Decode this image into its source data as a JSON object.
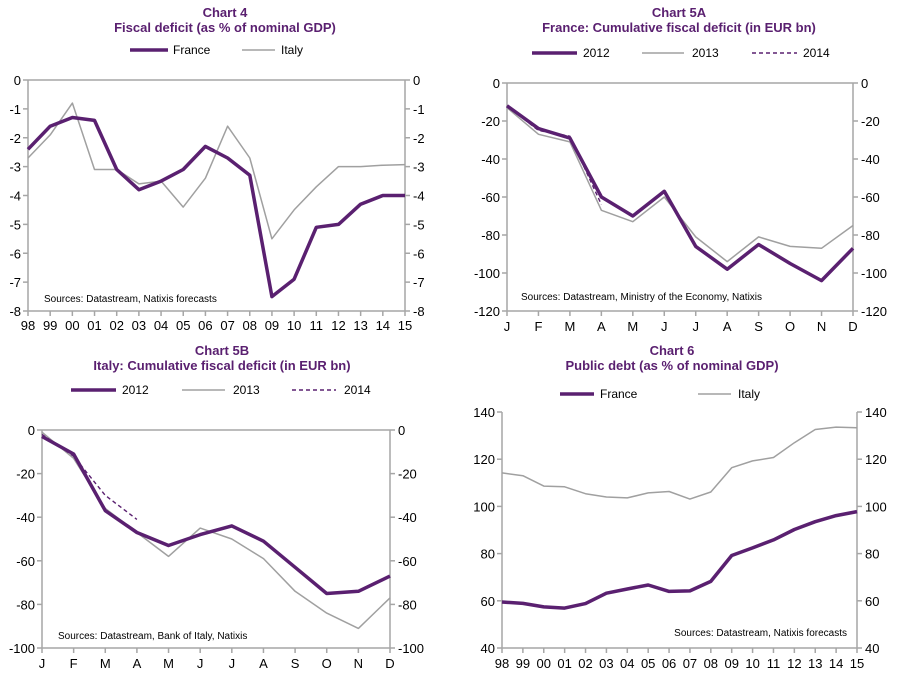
{
  "colors": {
    "primary": "#5a2070",
    "secondary": "#a0a0a0",
    "axis": "#a6a6a6",
    "title": "#5a2070"
  },
  "chart_data": [
    {
      "id": "chart4",
      "type": "line",
      "title": "Chart 4",
      "subtitle": "Fiscal deficit (as % of nominal GDP)",
      "xlabel": "",
      "ylabel": "",
      "categories": [
        "98",
        "99",
        "00",
        "01",
        "02",
        "03",
        "04",
        "05",
        "06",
        "07",
        "08",
        "09",
        "10",
        "11",
        "12",
        "13",
        "14",
        "15"
      ],
      "ylim": [
        -8,
        0
      ],
      "yticks": [
        0,
        -1,
        -2,
        -3,
        -4,
        -5,
        -6,
        -7,
        -8
      ],
      "grid": false,
      "legend_position": "top-center",
      "source": "Sources: Datastream, Natixis forecasts",
      "series": [
        {
          "name": "France",
          "style": "thick",
          "values": [
            -2.4,
            -1.6,
            -1.3,
            -1.4,
            -3.1,
            -3.8,
            -3.5,
            -3.1,
            -2.3,
            -2.7,
            -3.3,
            -7.5,
            -6.9,
            -5.1,
            -5.0,
            -4.3,
            -4.0,
            -4.0
          ]
        },
        {
          "name": "Italy",
          "style": "thin",
          "values": [
            -2.7,
            -1.9,
            -0.8,
            -3.1,
            -3.1,
            -3.6,
            -3.5,
            -4.4,
            -3.4,
            -1.6,
            -2.7,
            -5.5,
            -4.5,
            -3.7,
            -3.0,
            -3.0,
            -2.95,
            -2.93
          ]
        }
      ]
    },
    {
      "id": "chart5a",
      "type": "line",
      "title": "Chart 5A",
      "subtitle": "France: Cumulative fiscal deficit (in EUR bn)",
      "xlabel": "",
      "ylabel": "",
      "categories": [
        "J",
        "F",
        "M",
        "A",
        "M",
        "J",
        "J",
        "A",
        "S",
        "O",
        "N",
        "D"
      ],
      "ylim": [
        -120,
        0
      ],
      "yticks": [
        0,
        -20,
        -40,
        -60,
        -80,
        -100,
        -120
      ],
      "grid": false,
      "legend_position": "top-center",
      "source": "Sources: Datastream, Ministry of the Economy, Natixis",
      "series": [
        {
          "name": "2012",
          "style": "thick",
          "values": [
            -12,
            -24,
            -29,
            -60,
            -70,
            -57,
            -86,
            -98,
            -85,
            -95,
            -104,
            -87
          ]
        },
        {
          "name": "2013",
          "style": "thin",
          "values": [
            -13,
            -27,
            -31,
            -67,
            -73,
            -60,
            -81,
            -94,
            -81,
            -86,
            -87,
            -75
          ]
        },
        {
          "name": "2014",
          "style": "dashed",
          "values": [
            -12,
            -25,
            -28,
            -64,
            null,
            null,
            null,
            null,
            null,
            null,
            null,
            null
          ]
        }
      ]
    },
    {
      "id": "chart5b",
      "type": "line",
      "title": "Chart 5B",
      "subtitle": "Italy: Cumulative fiscal deficit (in EUR bn)",
      "xlabel": "",
      "ylabel": "",
      "categories": [
        "J",
        "F",
        "M",
        "A",
        "M",
        "J",
        "J",
        "A",
        "S",
        "O",
        "N",
        "D"
      ],
      "ylim": [
        -100,
        0
      ],
      "yticks": [
        0,
        -20,
        -40,
        -60,
        -80,
        -100
      ],
      "grid": false,
      "legend_position": "top-center",
      "source": "Sources: Datastream, Bank of Italy, Natixis",
      "series": [
        {
          "name": "2012",
          "style": "thick",
          "values": [
            -3,
            -11,
            -37,
            -47,
            -53,
            -48,
            -44,
            -51,
            -63,
            -75,
            -74,
            -67
          ]
        },
        {
          "name": "2013",
          "style": "thin",
          "values": [
            -1,
            -13,
            -36,
            -47,
            -58,
            -45,
            -50,
            -59,
            -74,
            -84,
            -91,
            -77
          ]
        },
        {
          "name": "2014",
          "style": "dashed",
          "values": [
            -2,
            -12,
            -30,
            -41,
            null,
            null,
            null,
            null,
            null,
            null,
            null,
            null
          ]
        }
      ]
    },
    {
      "id": "chart6",
      "type": "line",
      "title": "Chart 6",
      "subtitle": "Public debt (as % of nominal GDP)",
      "xlabel": "",
      "ylabel": "",
      "categories": [
        "98",
        "99",
        "00",
        "01",
        "02",
        "03",
        "04",
        "05",
        "06",
        "07",
        "08",
        "09",
        "10",
        "11",
        "12",
        "13",
        "14",
        "15"
      ],
      "ylim": [
        40,
        140
      ],
      "yticks": [
        140,
        120,
        100,
        80,
        60,
        40
      ],
      "grid": false,
      "legend_position": "top-center",
      "source": "Sources: Datastream, Natixis forecasts",
      "series": [
        {
          "name": "France",
          "style": "thick",
          "values": [
            59.5,
            58.9,
            57.4,
            56.9,
            58.8,
            63.2,
            65.0,
            66.7,
            64.0,
            64.2,
            68.2,
            79.2,
            82.4,
            85.8,
            90.2,
            93.5,
            96.1,
            97.8
          ]
        },
        {
          "name": "Italy",
          "style": "thin",
          "values": [
            114.2,
            113.0,
            108.6,
            108.3,
            105.4,
            104.0,
            103.6,
            105.7,
            106.3,
            103.1,
            106.1,
            116.4,
            119.3,
            120.7,
            127.0,
            132.6,
            133.6,
            133.3
          ]
        }
      ]
    }
  ]
}
